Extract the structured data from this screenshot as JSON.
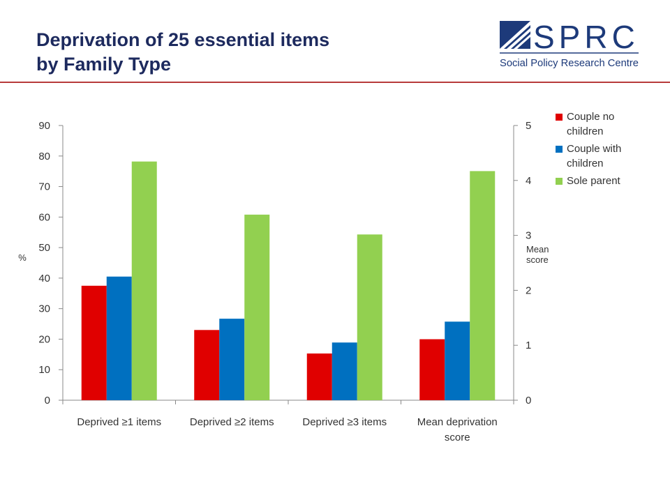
{
  "slide": {
    "title_line1": "Deprivation of 25 essential items",
    "title_line2": "by Family Type",
    "rule_color": "#b73a3a"
  },
  "logo": {
    "acronym": "SPRC",
    "name": "Social Policy Research Centre",
    "color": "#1d3a7a"
  },
  "chart_data": {
    "type": "bar",
    "categories": [
      "Deprived ≥1 items",
      "Deprived ≥2 items",
      "Deprived ≥3 items",
      [
        "Mean deprivation",
        "score"
      ]
    ],
    "series": [
      {
        "name": [
          "Couple no",
          "children"
        ],
        "color": "#e00000",
        "values": [
          37.5,
          23,
          15.3,
          1.11
        ]
      },
      {
        "name": [
          "Couple with",
          "children"
        ],
        "color": "#0070c0",
        "values": [
          40.5,
          26.7,
          18.9,
          1.43
        ]
      },
      {
        "name": [
          "Sole parent"
        ],
        "color": "#92d050",
        "values": [
          78.2,
          60.8,
          54.3,
          4.17
        ]
      }
    ],
    "y_left": {
      "label": "%",
      "ylim": [
        0,
        90
      ],
      "ticks": [
        0,
        10,
        20,
        30,
        40,
        50,
        60,
        70,
        80,
        90
      ]
    },
    "y_right": {
      "label": [
        "Mean",
        "score"
      ],
      "ylim": [
        0,
        5
      ],
      "ticks": [
        0,
        1,
        2,
        3,
        4,
        5
      ],
      "applies_to_category": 3
    },
    "legend": "right",
    "grid": false
  }
}
